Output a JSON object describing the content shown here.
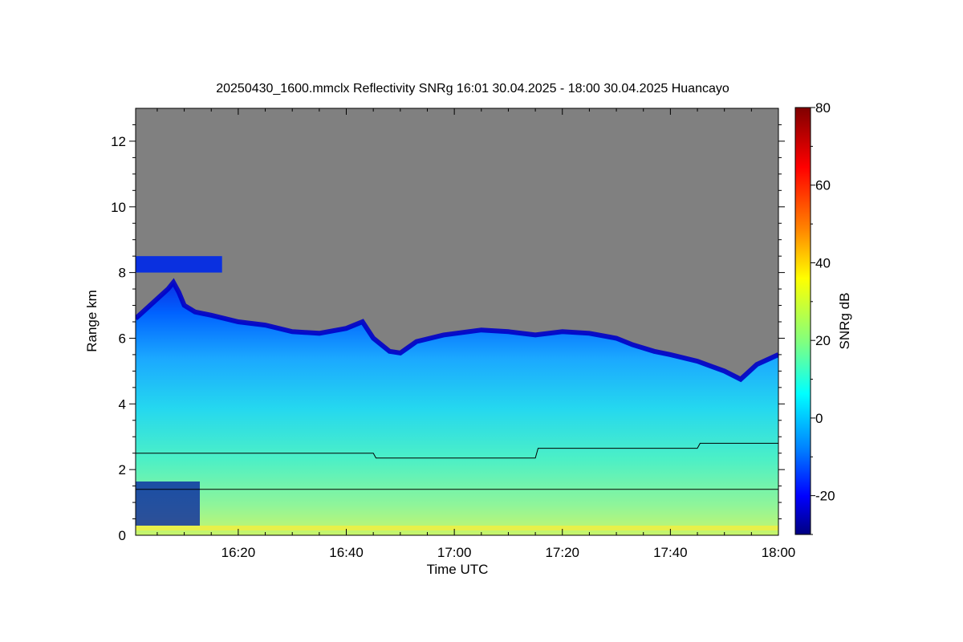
{
  "chart_data": {
    "type": "heatmap",
    "title": "20250430_1600.mmclx Reflectivity SNRg   16:01 30.04.2025 - 18:00 30.04.2025 Huancayo",
    "xlabel": "Time UTC",
    "ylabel": "Range km",
    "colorbar_label": "SNRg dB",
    "x_ticks": [
      "16:20",
      "16:40",
      "17:00",
      "17:20",
      "17:40",
      "18:00"
    ],
    "x_tick_minutes": [
      20,
      40,
      60,
      80,
      100,
      120
    ],
    "xlim_minutes": [
      1,
      120
    ],
    "x_start": "16:01 30.04.2025",
    "x_end": "18:00 30.04.2025",
    "y_ticks": [
      "0",
      "2",
      "4",
      "6",
      "8",
      "10",
      "12"
    ],
    "y_tick_values": [
      0,
      2,
      4,
      6,
      8,
      10,
      12
    ],
    "ylim": [
      0,
      13
    ],
    "colorbar_ticks": [
      "-20",
      "0",
      "20",
      "40",
      "60",
      "80"
    ],
    "colorbar_tick_values": [
      -20,
      0,
      20,
      40,
      60,
      80
    ],
    "colorbar_range": [
      -30,
      80
    ],
    "no_signal_color": "#808080",
    "colormap": [
      "#000080",
      "#0000ff",
      "#0080ff",
      "#00ffff",
      "#80ff80",
      "#ffff00",
      "#ff8000",
      "#ff0000",
      "#800000"
    ],
    "echo_top_km": [
      [
        1,
        6.6
      ],
      [
        3,
        6.9
      ],
      [
        5,
        7.2
      ],
      [
        7,
        7.5
      ],
      [
        8,
        7.7
      ],
      [
        9,
        7.4
      ],
      [
        10,
        7.0
      ],
      [
        12,
        6.8
      ],
      [
        15,
        6.7
      ],
      [
        20,
        6.5
      ],
      [
        25,
        6.4
      ],
      [
        30,
        6.2
      ],
      [
        35,
        6.15
      ],
      [
        40,
        6.3
      ],
      [
        43,
        6.5
      ],
      [
        45,
        6.0
      ],
      [
        48,
        5.6
      ],
      [
        50,
        5.55
      ],
      [
        53,
        5.9
      ],
      [
        58,
        6.1
      ],
      [
        65,
        6.25
      ],
      [
        70,
        6.2
      ],
      [
        75,
        6.1
      ],
      [
        80,
        6.2
      ],
      [
        85,
        6.15
      ],
      [
        90,
        6.0
      ],
      [
        93,
        5.8
      ],
      [
        97,
        5.6
      ],
      [
        100,
        5.5
      ],
      [
        105,
        5.3
      ],
      [
        110,
        5.0
      ],
      [
        113,
        4.75
      ],
      [
        116,
        5.2
      ],
      [
        120,
        5.5
      ]
    ],
    "upper_cirrus_layer_km": {
      "x_minutes": [
        1,
        17
      ],
      "bottom": 8.0,
      "top": 8.5
    },
    "reference_lines_km": [
      {
        "x_minutes": [
          1,
          45,
          45.5,
          75,
          75.5,
          105,
          105.5,
          120
        ],
        "y": [
          2.5,
          2.5,
          2.35,
          2.35,
          2.65,
          2.65,
          2.8,
          2.8
        ]
      },
      {
        "x_minutes": [
          1,
          120
        ],
        "y": [
          1.4,
          1.4
        ]
      }
    ]
  }
}
